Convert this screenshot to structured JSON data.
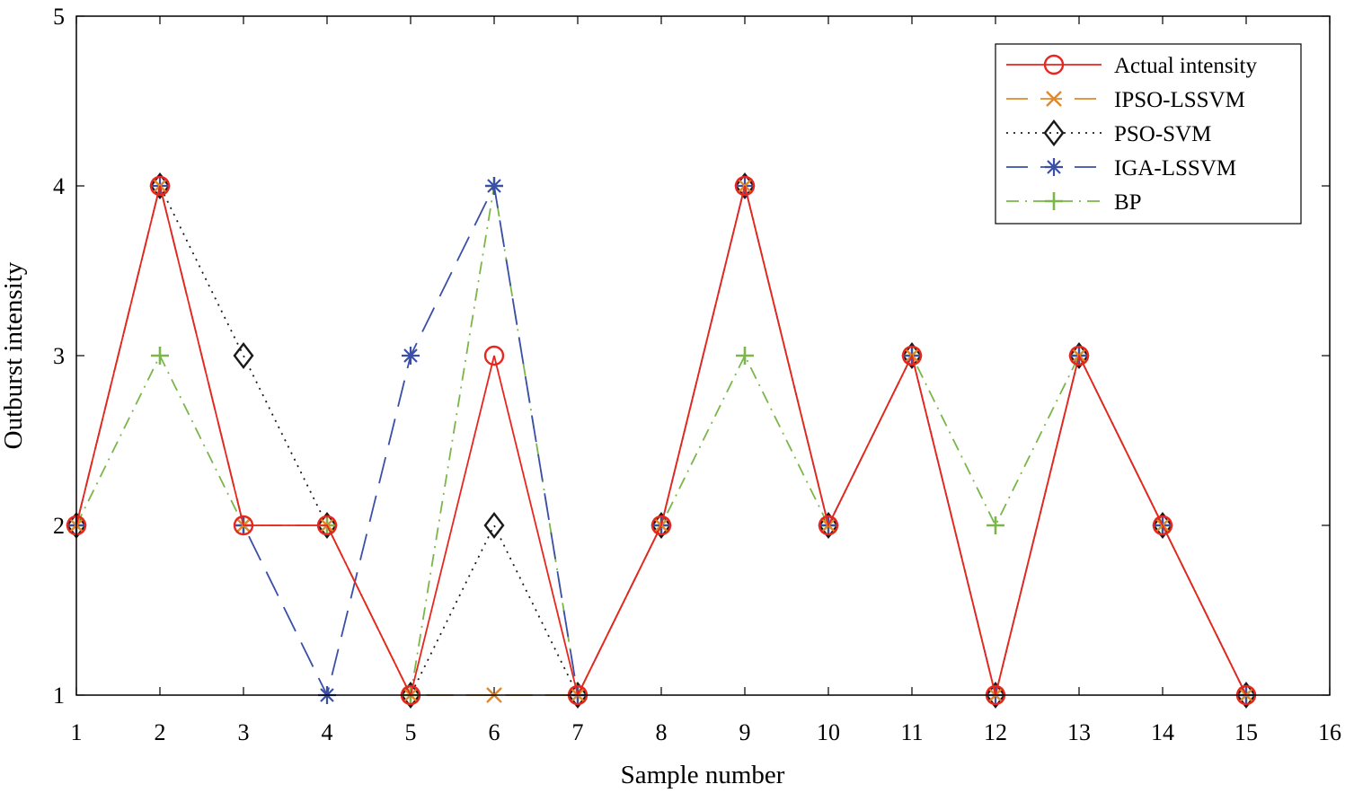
{
  "chart_data": {
    "type": "line",
    "title": "",
    "xlabel": "Sample number",
    "ylabel": "Outburst intensity",
    "xlim": [
      1,
      16
    ],
    "ylim": [
      1,
      5
    ],
    "xticks": [
      1,
      2,
      3,
      4,
      5,
      6,
      7,
      8,
      9,
      10,
      11,
      12,
      13,
      14,
      15,
      16
    ],
    "yticks": [
      1,
      2,
      3,
      4,
      5
    ],
    "xtick_labels": [
      "1",
      "2",
      "3",
      "4",
      "5",
      "6",
      "7",
      "8",
      "9",
      "10",
      "11",
      "12",
      "13",
      "14",
      "15",
      "16"
    ],
    "ytick_labels": [
      "1",
      "2",
      "3",
      "4",
      "5"
    ],
    "grid": false,
    "legend_position": "top-right",
    "x": [
      1,
      2,
      3,
      4,
      5,
      6,
      7,
      8,
      9,
      10,
      11,
      12,
      13,
      14,
      15
    ],
    "series": [
      {
        "name": "Actual intensity",
        "values": [
          2,
          4,
          2,
          2,
          1,
          3,
          1,
          2,
          4,
          2,
          3,
          1,
          3,
          2,
          1
        ],
        "color": "#e8261f",
        "line": "solid",
        "marker": "circle"
      },
      {
        "name": "IPSO-LSSVM",
        "values": [
          2,
          4,
          2,
          2,
          1,
          1,
          1,
          2,
          4,
          2,
          3,
          1,
          3,
          2,
          1
        ],
        "color": "#e0892c",
        "line": "dashed",
        "marker": "x"
      },
      {
        "name": "PSO-SVM",
        "values": [
          2,
          4,
          3,
          2,
          1,
          2,
          1,
          2,
          4,
          2,
          3,
          1,
          3,
          2,
          1
        ],
        "color": "#1a1a1a",
        "line": "dotted",
        "marker": "diamond"
      },
      {
        "name": "IGA-LSSVM",
        "values": [
          2,
          4,
          2,
          1,
          3,
          4,
          1,
          2,
          4,
          2,
          3,
          1,
          3,
          2,
          1
        ],
        "color": "#3a4fa8",
        "line": "dashed",
        "marker": "star"
      },
      {
        "name": "BP",
        "values": [
          2,
          3,
          2,
          2,
          1,
          4,
          1,
          2,
          3,
          2,
          3,
          2,
          3,
          2,
          1
        ],
        "color": "#7ab648",
        "line": "dashdot",
        "marker": "plus"
      }
    ]
  }
}
